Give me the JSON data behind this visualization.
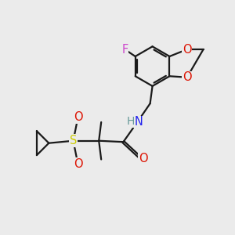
{
  "bg_color": "#ebebeb",
  "bond_color": "#1a1a1a",
  "bond_width": 1.6,
  "figsize": [
    3.0,
    3.0
  ],
  "dpi": 100,
  "atoms": {
    "F": {
      "color": "#cc44cc",
      "fontsize": 10.5
    },
    "O": {
      "color": "#dd1100",
      "fontsize": 10.5
    },
    "N": {
      "color": "#2222ee",
      "fontsize": 10.5
    },
    "S": {
      "color": "#cccc00",
      "fontsize": 10.5
    },
    "H": {
      "color": "#669999",
      "fontsize": 10.0
    }
  }
}
